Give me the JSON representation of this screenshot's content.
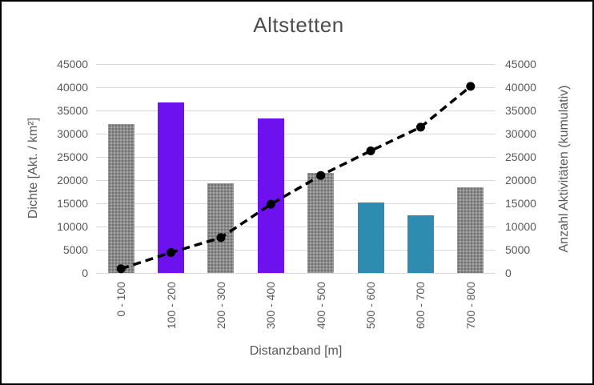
{
  "chart_data": {
    "type": "bar+line-combo",
    "title": "Altstetten",
    "categories": [
      "0 - 100",
      "100 - 200",
      "200 - 300",
      "300 - 400",
      "400 - 500",
      "500 - 600",
      "600 - 700",
      "700 - 800"
    ],
    "series": [
      {
        "name": "Dichte",
        "type": "bar",
        "axis": "left",
        "values": [
          32000,
          36800,
          19300,
          33300,
          21500,
          15200,
          12400,
          18500
        ],
        "bar_color_keys": [
          "gray",
          "purple",
          "gray",
          "purple",
          "gray",
          "teal",
          "teal",
          "gray"
        ]
      },
      {
        "name": "Anzahl Aktivitäten (kumulativ)",
        "type": "line",
        "axis": "right",
        "line_style": "dashed",
        "marker": "circle",
        "values": [
          900,
          4400,
          7600,
          14800,
          21000,
          26300,
          31400,
          40200
        ]
      }
    ],
    "xlabel": "Distanzband [m]",
    "ylabel_left": "Dichte [Akt. / km²]",
    "ylabel_right": "Anzahl Aktivitäten (kumulativ)",
    "ylim": [
      0,
      45000
    ],
    "ytick_step": 5000,
    "yticks": [
      0,
      5000,
      10000,
      15000,
      20000,
      25000,
      30000,
      35000,
      40000,
      45000
    ],
    "grid": true,
    "legend": "none",
    "colors": {
      "purple": "#6D12EF",
      "teal": "#2E8CB0",
      "gray": "#8C8C8C",
      "line": "#000000",
      "grid": "#D9D9D9",
      "text": "#595959",
      "title": "#4D4D4D"
    }
  }
}
